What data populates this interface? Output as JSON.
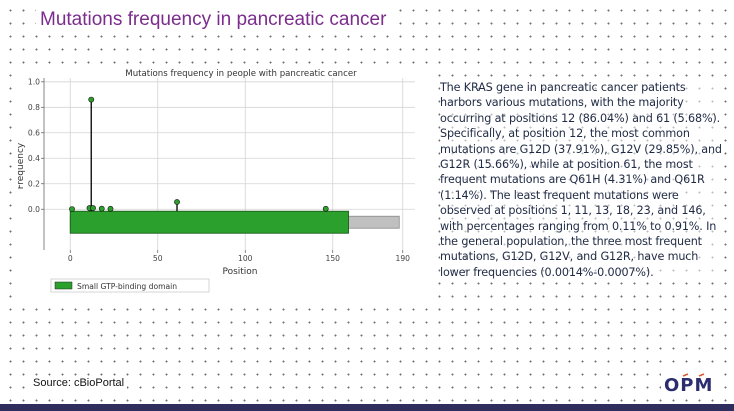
{
  "slide": {
    "title": "Mutations frequency in pancreatic cancer",
    "source": "Source: cBioPortal",
    "logo_text": "OPM",
    "text": "The KRAS gene in pancreatic cancer patients harbors various mutations, with the majority occurring at positions 12 (86.04%) and 61 (5.68%). Specifically, at position 12, the most common mutations are G12D (37.91%), G12V (29.85%), and G12R (15.66%), while at position 61, the most frequent mutations are Q61H (4.31%) and Q61R (1.14%). The least frequent mutations were observed at positions 1, 11, 13, 18, 23, and 146, with percentages ranging from 0.11% to 0.91%. In the general population, the three most frequent mutations, G12D, G12V, and G12R, have much lower frequencies (0.0014%-0.0007%).",
    "accent_color": "#7b2c8c",
    "bar_color": "#2e2d5e"
  },
  "chart_data": {
    "type": "lollipop",
    "title": "Mutations frequency in people with pancreatic cancer",
    "xlabel": "Position",
    "ylabel": "Frequency",
    "xlim": [
      -15,
      197
    ],
    "ylim": [
      -0.32,
      1.03
    ],
    "xticks": [
      0,
      50,
      100,
      150,
      190
    ],
    "yticks": [
      0.0,
      0.2,
      0.4,
      0.6,
      0.8,
      1.0
    ],
    "grid": true,
    "points": [
      {
        "x": 1,
        "y": 0.0011
      },
      {
        "x": 11,
        "y": 0.0091
      },
      {
        "x": 12,
        "y": 0.8604
      },
      {
        "x": 13,
        "y": 0.0091
      },
      {
        "x": 18,
        "y": 0.0045
      },
      {
        "x": 23,
        "y": 0.0034
      },
      {
        "x": 61,
        "y": 0.0568
      },
      {
        "x": 146,
        "y": 0.0034
      }
    ],
    "lollipop_color": "#2ca02c",
    "protein_length": 188,
    "domain": {
      "name": "Small GTP-binding domain",
      "start": 0,
      "end": 159,
      "color": "#2ca02c"
    },
    "legend": {
      "placement": "bottom-left",
      "entries": [
        "Small GTP-binding domain"
      ]
    }
  }
}
